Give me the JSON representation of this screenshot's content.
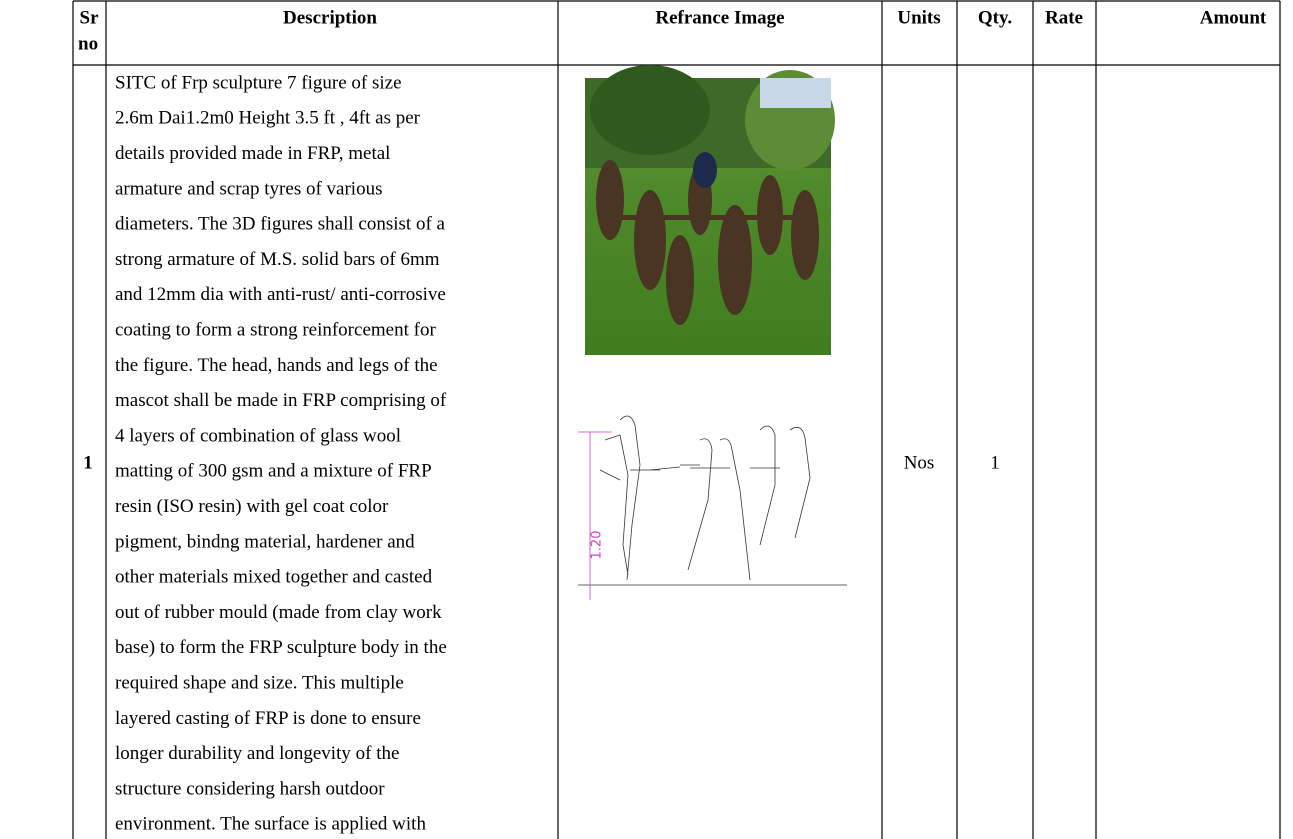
{
  "table": {
    "headers": [
      "Sr",
      "no",
      "Description",
      "Refrance Image",
      "Units",
      "Qty.",
      "Rate",
      "Amount"
    ],
    "rows": [
      {
        "sr_no": "1",
        "description_lines": [
          "SITC of Frp sculpture 7 figure   of size",
          "2.6m Dai1.2m0 Height 3.5 ft , 4ft as per",
          "details provided made in FRP, metal",
          "armature and scrap tyres of various",
          "diameters. The 3D figures shall consist of a",
          "strong armature of M.S. solid bars of 6mm",
          "and 12mm dia with anti-rust/ anti-corrosive",
          "coating to form a strong reinforcement for",
          "the figure. The head, hands and legs of the",
          "mascot shall be made in FRP comprising of",
          "4 layers of combination of glass wool",
          "matting of 300 gsm and a mixture of FRP",
          "resin (ISO resin) with gel coat color",
          "pigment, bindng material, hardener and",
          "other materials mixed together and casted",
          "out of rubber mould (made from clay work",
          "base) to form the FRP sculpture body in the",
          "required shape and size. This multiple",
          "layered casting of FRP is done to ensure",
          "longer durability and longevity of the",
          "structure considering harsh outdoor",
          "environment. The surface is applied with"
        ],
        "drawing_dimension": "1.20",
        "units": "Nos",
        "qty": "1"
      }
    ]
  }
}
